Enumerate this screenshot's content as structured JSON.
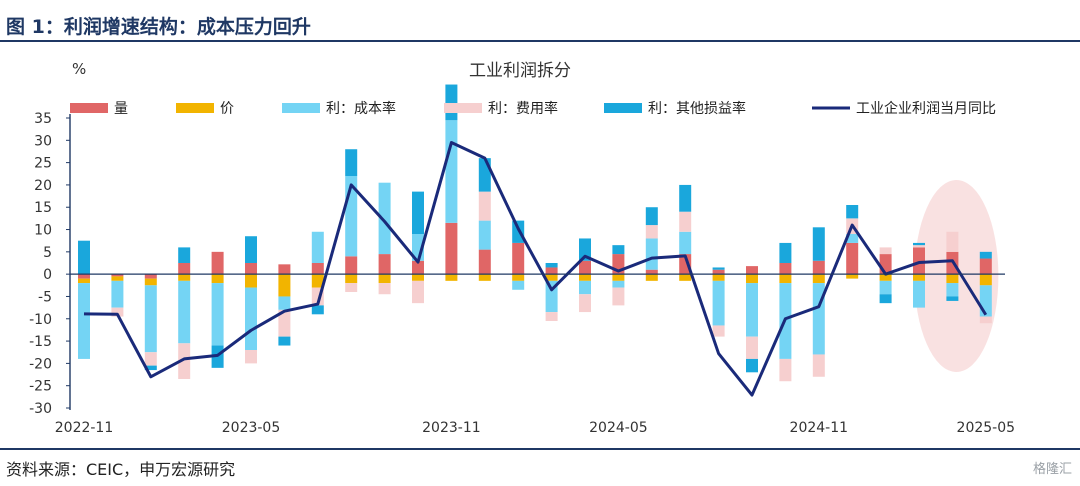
{
  "figure": {
    "title": "图 1：利润增速结构：成本压力回升",
    "source": "资料来源：CEIC，申万宏源研究",
    "watermark": "格隆汇"
  },
  "colors": {
    "vol": "#e06666",
    "price": "#f2b400",
    "cost": "#74d4f4",
    "fee": "#f6cfcf",
    "other": "#1aa7dc",
    "line": "#1a2a7a",
    "highlight": "#f6d4d4",
    "axis": "#1f3864"
  },
  "chart_data": {
    "type": "bar",
    "title": "工业利润拆分",
    "ylabel": "%",
    "xlabel": "",
    "ylim": [
      -30,
      35
    ],
    "yticks": [
      35,
      30,
      25,
      20,
      15,
      10,
      5,
      0,
      -5,
      -10,
      -15,
      -20,
      -25,
      -30
    ],
    "categories": [
      "2022-11",
      "2022-12",
      "2023-02",
      "2023-03",
      "2023-04",
      "2023-05",
      "2023-06",
      "2023-07",
      "2023-08",
      "2023-09",
      "2023-10",
      "2023-11",
      "2023-12",
      "2024-02",
      "2024-03",
      "2024-04",
      "2024-05",
      "2024-06",
      "2024-07",
      "2024-08",
      "2024-09",
      "2024-10",
      "2024-11",
      "2024-12",
      "2025-02",
      "2025-03",
      "2025-04",
      "2025-05"
    ],
    "x_tick_labels": [
      {
        "index": 0,
        "label": "2022-11"
      },
      {
        "index": 5,
        "label": "2023-05"
      },
      {
        "index": 11,
        "label": "2023-11"
      },
      {
        "index": 16,
        "label": "2024-05"
      },
      {
        "index": 22,
        "label": "2024-11"
      },
      {
        "index": 27,
        "label": "2025-05"
      }
    ],
    "series": [
      {
        "name": "量",
        "key": "vol",
        "kind": "bar",
        "values": [
          -1,
          -0.5,
          -1,
          2.5,
          5,
          2.5,
          2.2,
          2.5,
          4,
          4.5,
          3,
          11.5,
          5.5,
          7,
          1.5,
          3,
          4.5,
          1,
          4.5,
          1,
          1.8,
          2.5,
          3,
          7,
          4.5,
          6,
          5,
          3.5
        ]
      },
      {
        "name": "价",
        "key": "price",
        "kind": "bar",
        "values": [
          -1,
          -1,
          -1.5,
          -1.5,
          -2,
          -3,
          -5,
          -3,
          -2,
          -2,
          -1.5,
          -1.5,
          -1.5,
          -1.5,
          -1.5,
          -1.5,
          -1.5,
          -1.5,
          -1.5,
          -1.5,
          -2,
          -2,
          -2,
          -1,
          -1.5,
          -1.5,
          -2,
          -2.5
        ]
      },
      {
        "name": "利：成本率",
        "key": "cost",
        "kind": "bar",
        "values": [
          -17,
          -6,
          -15,
          -14,
          -14,
          -14,
          -3,
          7,
          18,
          16,
          6,
          23,
          6.5,
          -2,
          -7,
          -3,
          -1.5,
          7,
          5,
          -10,
          -12,
          -17,
          -16,
          2,
          -3,
          -6,
          -3,
          -7
        ]
      },
      {
        "name": "利：费用率",
        "key": "fee",
        "kind": "bar",
        "values": [
          0,
          -2,
          -3,
          -8,
          0,
          -3,
          -6,
          -4,
          -2,
          -2.5,
          -5,
          0,
          6.5,
          0,
          -2,
          -4,
          -4,
          3,
          4.5,
          -2.5,
          -5,
          -5,
          -5,
          3.5,
          1.5,
          0.5,
          4.5,
          -1.5
        ]
      },
      {
        "name": "利：其他损益率",
        "key": "other",
        "kind": "bar",
        "values": [
          7.5,
          0,
          -1,
          3.5,
          -5,
          6,
          -2,
          -2,
          6,
          0,
          9.5,
          8,
          7.5,
          5,
          1,
          5,
          2,
          4,
          6,
          0.5,
          -3,
          4.5,
          7.5,
          3,
          -2,
          0.5,
          -1,
          1.5
        ]
      },
      {
        "name": "工业企业利润当月同比",
        "key": "line",
        "kind": "line",
        "values": [
          -8.9,
          -9,
          -23,
          -19,
          -18.2,
          -12.6,
          -8.3,
          -6.7,
          20,
          11.8,
          2.7,
          29.5,
          26,
          10.2,
          -3.5,
          4,
          0.7,
          3.6,
          4.1,
          -17.8,
          -27.1,
          -10,
          -7.3,
          11,
          0,
          2.6,
          3,
          -9.1
        ]
      }
    ]
  }
}
